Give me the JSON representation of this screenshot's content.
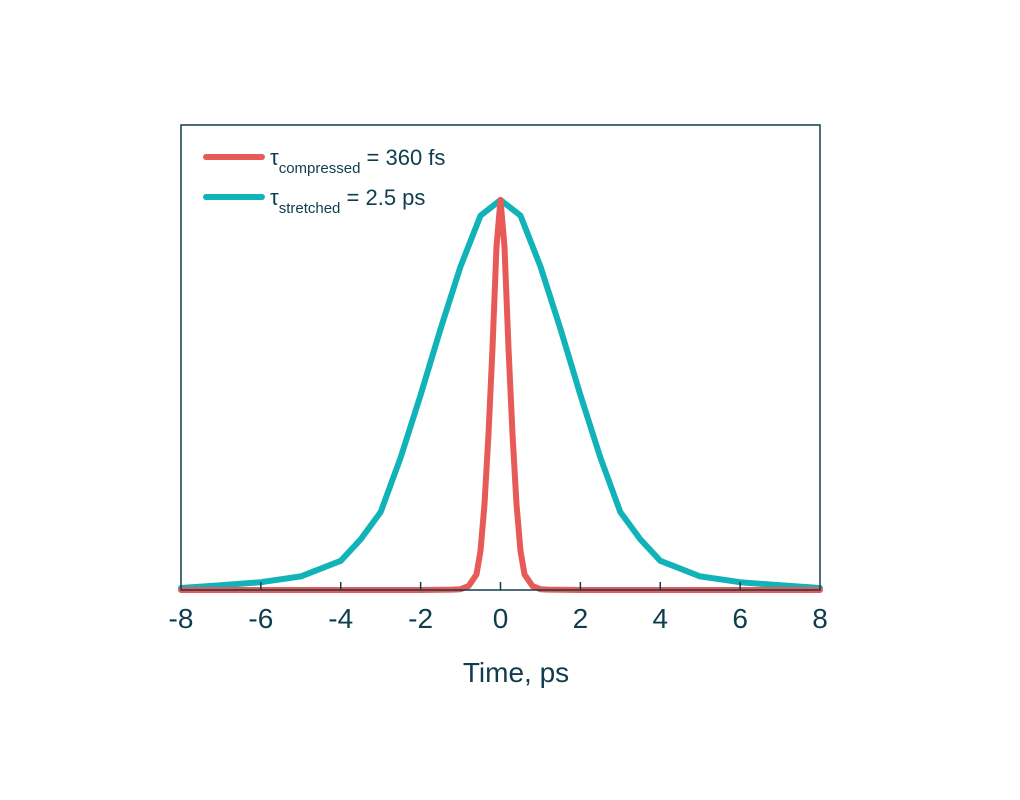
{
  "chart_data": {
    "type": "line",
    "title": "",
    "xlabel": "Time, ps",
    "ylabel": "",
    "xlim": [
      -8,
      8
    ],
    "ylim": [
      0,
      1.0
    ],
    "xticks": [
      -8,
      -6,
      -4,
      -2,
      0,
      2,
      4,
      6,
      8
    ],
    "grid": false,
    "legend_position": "top-left",
    "series": [
      {
        "name": "τcompressed = 360 fs",
        "legend_symbol": "τ",
        "legend_sub": "compressed",
        "legend_rest": " = 360 fs",
        "color": "#e85a57",
        "x": [
          -8,
          -2,
          -1.2,
          -1,
          -0.8,
          -0.6,
          -0.5,
          -0.4,
          -0.3,
          -0.2,
          -0.1,
          0,
          0.1,
          0.2,
          0.3,
          0.4,
          0.5,
          0.6,
          0.8,
          1,
          1.2,
          2,
          8
        ],
        "y": [
          0,
          0,
          0.001,
          0.002,
          0.01,
          0.04,
          0.1,
          0.22,
          0.4,
          0.62,
          0.88,
          1.0,
          0.88,
          0.62,
          0.4,
          0.22,
          0.1,
          0.04,
          0.01,
          0.002,
          0.001,
          0,
          0
        ]
      },
      {
        "name": "τstretched = 2.5 ps",
        "legend_symbol": "τ",
        "legend_sub": "stretched",
        "legend_rest": " = 2.5 ps",
        "color": "#11b3b8",
        "x": [
          -8,
          -7,
          -6,
          -5,
          -4,
          -3.5,
          -3,
          -2.5,
          -2,
          -1.5,
          -1,
          -0.5,
          0,
          0.5,
          1,
          1.5,
          2,
          2.5,
          3,
          3.5,
          4,
          5,
          6,
          7,
          8
        ],
        "y": [
          0.005,
          0.012,
          0.02,
          0.035,
          0.075,
          0.13,
          0.2,
          0.34,
          0.5,
          0.67,
          0.83,
          0.96,
          1.0,
          0.96,
          0.83,
          0.67,
          0.5,
          0.34,
          0.2,
          0.13,
          0.075,
          0.035,
          0.02,
          0.012,
          0.005
        ]
      }
    ]
  }
}
